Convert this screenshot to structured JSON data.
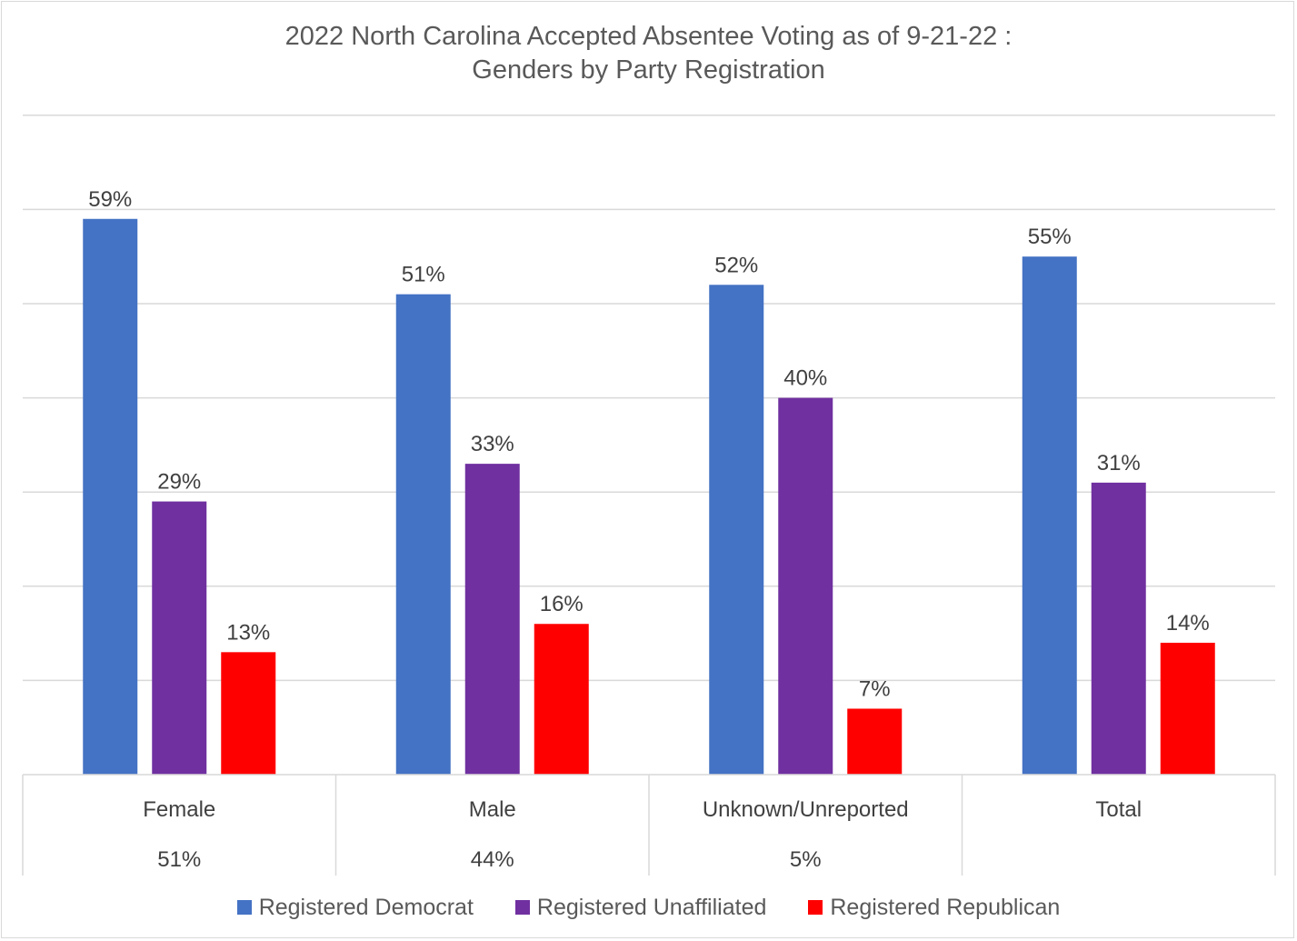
{
  "colors": {
    "democrat": "#4472C4",
    "unaffiliated": "#7030A0",
    "republican": "#FF0000",
    "gridline": "#d9d9d9",
    "text": "#404040"
  },
  "chart_data": {
    "type": "bar",
    "title_lines": [
      "2022 North Carolina Accepted Absentee Voting as of 9-21-22 :",
      "Genders by Party Registration"
    ],
    "categories": [
      "Female",
      "Male",
      "Unknown/Unreported",
      "Total"
    ],
    "category_shares": [
      "51%",
      "44%",
      "5%",
      ""
    ],
    "series": [
      {
        "name": "Registered Democrat",
        "color": "#4472C4",
        "values": [
          59,
          51,
          52,
          55
        ],
        "labels": [
          "59%",
          "51%",
          "52%",
          "55%"
        ]
      },
      {
        "name": "Registered Unaffiliated",
        "color": "#7030A0",
        "values": [
          29,
          33,
          40,
          31
        ],
        "labels": [
          "29%",
          "33%",
          "40%",
          "31%"
        ]
      },
      {
        "name": "Registered Republican",
        "color": "#FF0000",
        "values": [
          13,
          16,
          7,
          14
        ],
        "labels": [
          "13%",
          "16%",
          "7%",
          "14%"
        ]
      }
    ],
    "ylim": [
      0,
      70
    ],
    "y_gridline_step": 10,
    "y_tick_labels_shown": false,
    "grid": true,
    "legend_position": "bottom"
  }
}
